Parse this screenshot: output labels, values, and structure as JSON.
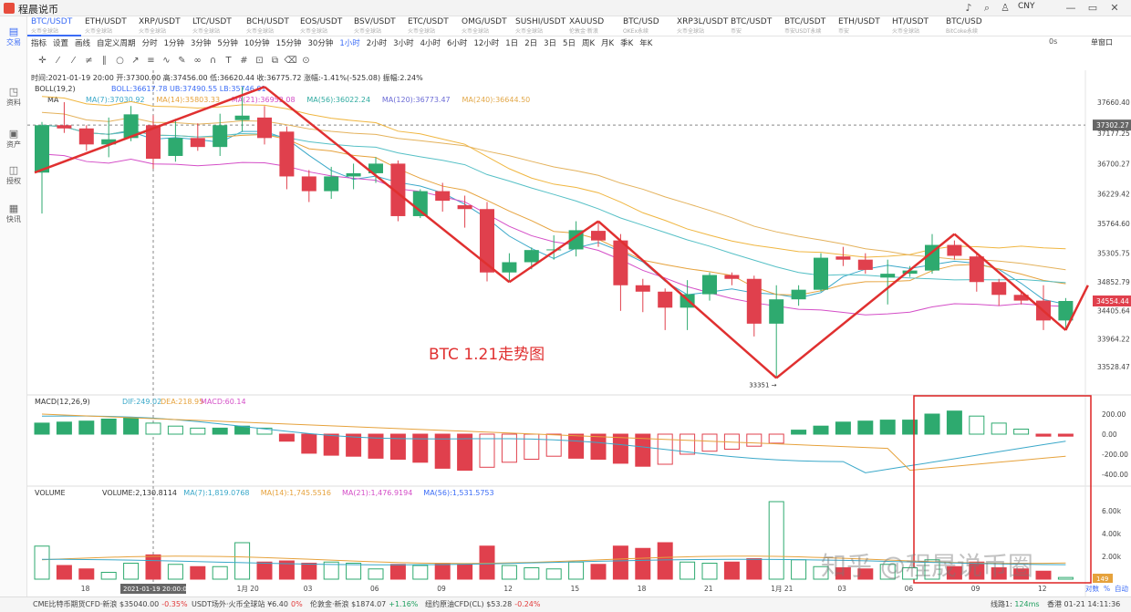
{
  "app": {
    "title": "程晨说币",
    "currency": "CNY"
  },
  "tabs": [
    {
      "label": "BTC/USDT",
      "sub": "火币全球站"
    },
    {
      "label": "ETH/USDT",
      "sub": "火币全球站"
    },
    {
      "label": "XRP/USDT",
      "sub": "火币全球站"
    },
    {
      "label": "LTC/USDT",
      "sub": "火币全球站"
    },
    {
      "label": "BCH/USDT",
      "sub": "火币全球站"
    },
    {
      "label": "EOS/USDT",
      "sub": "火币全球站"
    },
    {
      "label": "BSV/USDT",
      "sub": "火币全球站"
    },
    {
      "label": "ETC/USDT",
      "sub": "火币全球站"
    },
    {
      "label": "OMG/USDT",
      "sub": "火币全球站"
    },
    {
      "label": "SUSHI/USDT",
      "sub": "火币全球站"
    },
    {
      "label": "XAUUSD",
      "sub": "伦敦金·新浪"
    },
    {
      "label": "BTC/USD",
      "sub": "OKEx永续"
    },
    {
      "label": "XRP3L/USDT",
      "sub": "火币全球站"
    },
    {
      "label": "BTC/USDT",
      "sub": "币安"
    },
    {
      "label": "BTC/USDT",
      "sub": "币安USDT永续"
    },
    {
      "label": "ETH/USDT",
      "sub": "币安"
    },
    {
      "label": "HT/USDT",
      "sub": "火币全球站"
    },
    {
      "label": "BTC/USD",
      "sub": "BitCoke永续"
    }
  ],
  "sidebar": [
    {
      "icon": "trade-icon",
      "glyph": "▤",
      "label": "交易"
    },
    {
      "icon": "info-icon",
      "glyph": "◳",
      "label": "资料"
    },
    {
      "icon": "asset-icon",
      "glyph": "▣",
      "label": "资产"
    },
    {
      "icon": "auth-icon",
      "glyph": "◫",
      "label": "授权"
    },
    {
      "icon": "news-icon",
      "glyph": "▦",
      "label": "快讯"
    }
  ],
  "toolbar": {
    "items": [
      "指标",
      "设置",
      "画线",
      "自定义周期",
      "分时",
      "1分钟",
      "3分钟",
      "5分钟",
      "10分钟",
      "15分钟",
      "30分钟",
      "1小时",
      "2小时",
      "3小时",
      "4小时",
      "6小时",
      "12小时",
      "1日",
      "2日",
      "3日",
      "5日",
      "周K",
      "月K",
      "季K",
      "年K"
    ],
    "active": "1小时",
    "right_seconds": "0s",
    "mode": "单窗口"
  },
  "chart_data": {
    "type": "candlestick",
    "ohlc_label": "时间:2021-01-19 20:00 开:37300.00 高:37456.00 低:36620.44 收:36775.72 涨幅:-1.41%(-525.08) 振幅:2.24%",
    "annotation": "BTC 1.21走势图",
    "low_marker": "33351",
    "crosshair_label": "2021-01-19 20:00:00",
    "boll": {
      "label": "BOLL(19,2)",
      "values": "BOLL:36617.78  UB:37490.55  LB:35746.01"
    },
    "ma": {
      "label": "MA",
      "values": [
        "MA(7):37030.92",
        "MA(14):35803.33",
        "MA(21):36952.08",
        "MA(56):36022.24",
        "MA(120):36773.47",
        "MA(240):36644.50"
      ]
    },
    "price_ticks": [
      "37660.40",
      "37177.25",
      "36700.27",
      "36229.42",
      "35764.60",
      "35305.75",
      "34852.79",
      "34405.64",
      "33964.22",
      "33528.47"
    ],
    "last_price": "34554.44",
    "cross_price": "37302.27",
    "x_ticks": [
      "18",
      "1月 20",
      "03",
      "06",
      "09",
      "12",
      "15",
      "18",
      "21",
      "1月 21",
      "03",
      "06",
      "09",
      "12"
    ],
    "candles": [
      [
        36560,
        37350,
        35920,
        37300
      ],
      [
        37300,
        37660,
        37180,
        37250
      ],
      [
        37250,
        37300,
        36900,
        37000
      ],
      [
        37000,
        37420,
        36800,
        37080
      ],
      [
        37100,
        37600,
        37050,
        37470
      ],
      [
        37300,
        37456,
        36620,
        36775.72
      ],
      [
        36820,
        37400,
        36730,
        37100
      ],
      [
        37100,
        37330,
        36900,
        36960
      ],
      [
        36960,
        37480,
        36820,
        37300
      ],
      [
        37380,
        37900,
        37200,
        37450
      ],
      [
        37420,
        37600,
        37000,
        37100
      ],
      [
        37200,
        37280,
        36300,
        36500
      ],
      [
        36500,
        36600,
        36100,
        36270
      ],
      [
        36270,
        36650,
        36150,
        36500
      ],
      [
        36500,
        36700,
        36300,
        36550
      ],
      [
        36550,
        36800,
        36400,
        36700
      ],
      [
        36700,
        36750,
        35800,
        35880
      ],
      [
        35880,
        36300,
        35850,
        36270
      ],
      [
        36270,
        36400,
        35950,
        36120
      ],
      [
        36050,
        36200,
        35700,
        35990
      ],
      [
        35990,
        36100,
        34860,
        35000
      ],
      [
        35000,
        35300,
        34850,
        35160
      ],
      [
        35160,
        35390,
        35050,
        35350
      ],
      [
        35350,
        35580,
        35200,
        35360
      ],
      [
        35360,
        35800,
        35250,
        35660
      ],
      [
        35650,
        35800,
        35400,
        35500
      ],
      [
        35500,
        35600,
        34400,
        34800
      ],
      [
        34800,
        34900,
        34380,
        34700
      ],
      [
        34700,
        34750,
        34100,
        34450
      ],
      [
        34450,
        34880,
        34100,
        34660
      ],
      [
        34660,
        35000,
        34560,
        34960
      ],
      [
        34960,
        35000,
        34800,
        34900
      ],
      [
        34900,
        34950,
        34000,
        34200
      ],
      [
        34200,
        34800,
        33351,
        34580
      ],
      [
        34580,
        34800,
        34480,
        34730
      ],
      [
        34730,
        35300,
        34700,
        35230
      ],
      [
        35250,
        35400,
        35100,
        35200
      ],
      [
        35200,
        35300,
        34980,
        35040
      ],
      [
        34920,
        35200,
        34500,
        34980
      ],
      [
        34980,
        35100,
        34930,
        35030
      ],
      [
        35030,
        35600,
        34980,
        35430
      ],
      [
        35430,
        35500,
        35200,
        35260
      ],
      [
        35250,
        35300,
        34700,
        34850
      ],
      [
        34850,
        34900,
        34480,
        34650
      ],
      [
        34650,
        34700,
        34500,
        34560
      ],
      [
        34560,
        34800,
        34100,
        34250
      ],
      [
        34250,
        34600,
        34120,
        34554.44
      ]
    ],
    "macd": {
      "label": "MACD(12,26,9)",
      "dif": "DIF:249.02",
      "dea": "DEA:218.95",
      "value": "MACD:60.14",
      "ticks": [
        "200.00",
        "0.00",
        "-200.00",
        "-400.00"
      ]
    },
    "volume": {
      "label": "VOLUME",
      "values": [
        "VOLUME:2,130.8114",
        "MA(7):1,819.0768",
        "MA(14):1,745.5516",
        "MA(21):1,476.9194",
        "MA(56):1,531.5753"
      ],
      "ticks": [
        "6.00k",
        "4.00k",
        "2.00k"
      ],
      "last": "149"
    },
    "watermark": "知乎 @程晟说币圈",
    "corner_controls": [
      "对数",
      "%",
      "自动"
    ]
  },
  "bottombar": {
    "tickers": [
      {
        "name": "CME比特币期货CFD·新浪",
        "price": "$35040.00",
        "change": "-0.35%"
      },
      {
        "name": "USDT场外·火币全球站",
        "price": "¥6.40",
        "change": "0%"
      },
      {
        "name": "伦敦金·新浪",
        "price": "$1874.07",
        "change": "+1.16%"
      },
      {
        "name": "纽约原油CFD(CL)",
        "price": "$53.28",
        "change": "-0.24%"
      }
    ],
    "line": "线路1:",
    "latency": "124ms",
    "time": "香港 01-21 14:11:36"
  }
}
